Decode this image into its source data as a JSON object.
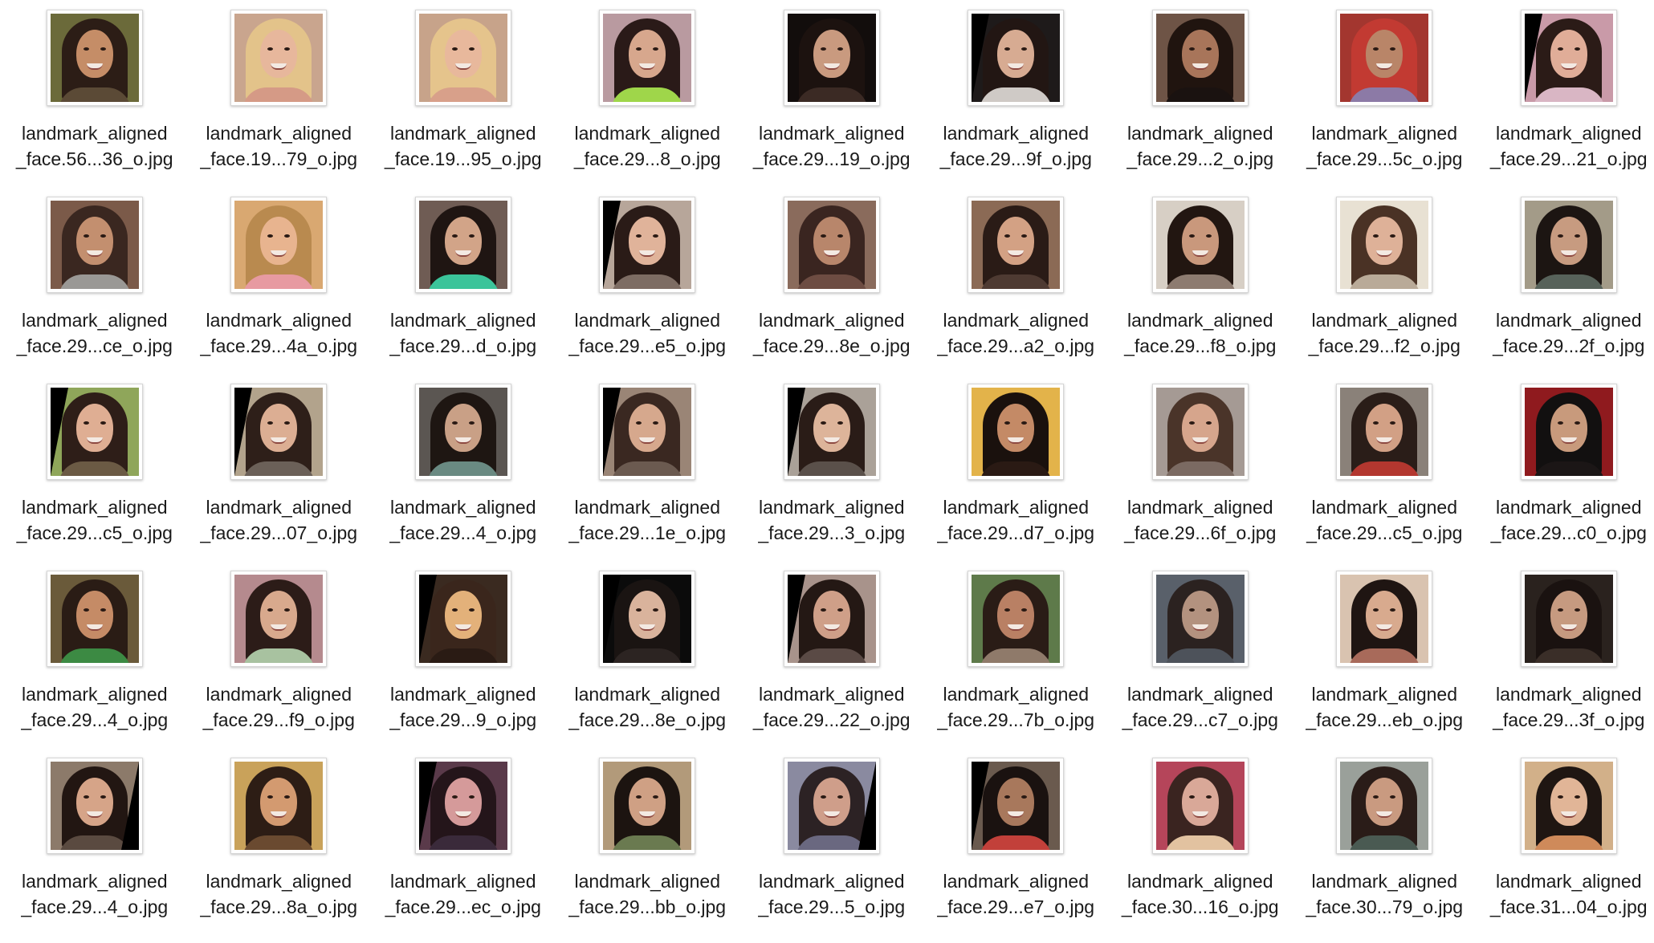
{
  "files": [
    {
      "line1": "landmark_aligned",
      "line2": "_face.56...36_o.jpg",
      "colors": {
        "bg": "#6b6a3a",
        "hair": "#2c1d16",
        "skin": "#c58d67",
        "shirt": "#5b4a36"
      },
      "mask": "none"
    },
    {
      "line1": "landmark_aligned",
      "line2": "_face.19...79_o.jpg",
      "colors": {
        "bg": "#c9a58e",
        "hair": "#e3c38a",
        "skin": "#e7b79c",
        "shirt": "#d59a86"
      },
      "mask": "none"
    },
    {
      "line1": "landmark_aligned",
      "line2": "_face.19...95_o.jpg",
      "colors": {
        "bg": "#c7a38a",
        "hair": "#e5c48c",
        "skin": "#e8b89c",
        "shirt": "#d8a08a"
      },
      "mask": "none"
    },
    {
      "line1": "landmark_aligned",
      "line2": "_face.29...8_o.jpg",
      "colors": {
        "bg": "#b99aa0",
        "hair": "#2a1a18",
        "skin": "#d7a78d",
        "shirt": "#9fd64a"
      },
      "mask": "none"
    },
    {
      "line1": "landmark_aligned",
      "line2": "_face.29...19_o.jpg",
      "colors": {
        "bg": "#120d0c",
        "hair": "#1c120f",
        "skin": "#c99a7f",
        "shirt": "#3b2a24"
      },
      "mask": "none"
    },
    {
      "line1": "landmark_aligned",
      "line2": "_face.29...9f_o.jpg",
      "colors": {
        "bg": "#1e1a1a",
        "hair": "#221613",
        "skin": "#d7ab92",
        "shirt": "#cfcac6"
      },
      "mask": "left"
    },
    {
      "line1": "landmark_aligned",
      "line2": "_face.29...2_o.jpg",
      "colors": {
        "bg": "#6e5446",
        "hair": "#20140f",
        "skin": "#a8755a",
        "shirt": "#1a1210"
      },
      "mask": "none"
    },
    {
      "line1": "landmark_aligned",
      "line2": "_face.29...5c_o.jpg",
      "colors": {
        "bg": "#a3362f",
        "hair": "#c23a32",
        "skin": "#b98568",
        "shirt": "#8c7aa6"
      },
      "mask": "none"
    },
    {
      "line1": "landmark_aligned",
      "line2": "_face.29...21_o.jpg",
      "colors": {
        "bg": "#c99aa8",
        "hair": "#2b1b17",
        "skin": "#e0ad98",
        "shirt": "#d9b6c4"
      },
      "mask": "left"
    },
    {
      "line1": "landmark_aligned",
      "line2": "_face.29...ce_o.jpg",
      "colors": {
        "bg": "#7b5a49",
        "hair": "#3a2720",
        "skin": "#c38f6f",
        "shirt": "#9a9895"
      },
      "mask": "none"
    },
    {
      "line1": "landmark_aligned",
      "line2": "_face.29...4a_o.jpg",
      "colors": {
        "bg": "#d9a871",
        "hair": "#b98a4f",
        "skin": "#e8b48f",
        "shirt": "#e79aa1"
      },
      "mask": "none"
    },
    {
      "line1": "landmark_aligned",
      "line2": "_face.29...d_o.jpg",
      "colors": {
        "bg": "#6f5c54",
        "hair": "#1f1512",
        "skin": "#d2a488",
        "shirt": "#3bc49a"
      },
      "mask": "none"
    },
    {
      "line1": "landmark_aligned",
      "line2": "_face.29...e5_o.jpg",
      "colors": {
        "bg": "#b7a69a",
        "hair": "#2a1b17",
        "skin": "#e0b39a",
        "shirt": "#7d6c63"
      },
      "mask": "left"
    },
    {
      "line1": "landmark_aligned",
      "line2": "_face.29...8e_o.jpg",
      "colors": {
        "bg": "#8a6b5c",
        "hair": "#3a2520",
        "skin": "#b8866b",
        "shirt": "#6d4c42"
      },
      "mask": "none"
    },
    {
      "line1": "landmark_aligned",
      "line2": "_face.29...a2_o.jpg",
      "colors": {
        "bg": "#8b6a55",
        "hair": "#2a1b16",
        "skin": "#d3a184",
        "shirt": "#4e3a32"
      },
      "mask": "none"
    },
    {
      "line1": "landmark_aligned",
      "line2": "_face.29...f8_o.jpg",
      "colors": {
        "bg": "#d7cfc5",
        "hair": "#221611",
        "skin": "#c9987c",
        "shirt": "#8d7b70"
      },
      "mask": "none"
    },
    {
      "line1": "landmark_aligned",
      "line2": "_face.29...f2_o.jpg",
      "colors": {
        "bg": "#e8e1d3",
        "hair": "#4a3225",
        "skin": "#deb198",
        "shirt": "#b9aa98"
      },
      "mask": "none"
    },
    {
      "line1": "landmark_aligned",
      "line2": "_face.29...2f_o.jpg",
      "colors": {
        "bg": "#a39b88",
        "hair": "#1c1512",
        "skin": "#c79b80",
        "shirt": "#57625a"
      },
      "mask": "none"
    },
    {
      "line1": "landmark_aligned",
      "line2": "_face.29...c5_o.jpg",
      "colors": {
        "bg": "#8fa65a",
        "hair": "#2e1e18",
        "skin": "#dfae93",
        "shirt": "#6b5a44"
      },
      "mask": "left"
    },
    {
      "line1": "landmark_aligned",
      "line2": "_face.29...07_o.jpg",
      "colors": {
        "bg": "#b2a38c",
        "hair": "#2e1f19",
        "skin": "#dcae93",
        "shirt": "#6b6058"
      },
      "mask": "left"
    },
    {
      "line1": "landmark_aligned",
      "line2": "_face.29...4_o.jpg",
      "colors": {
        "bg": "#5b5652",
        "hair": "#1e1612",
        "skin": "#c9a086",
        "shirt": "#6a8a82"
      },
      "mask": "none"
    },
    {
      "line1": "landmark_aligned",
      "line2": "_face.29...1e_o.jpg",
      "colors": {
        "bg": "#9a8576",
        "hair": "#3a2821",
        "skin": "#d6a88d",
        "shirt": "#6b5a50"
      },
      "mask": "left"
    },
    {
      "line1": "landmark_aligned",
      "line2": "_face.29...3_o.jpg",
      "colors": {
        "bg": "#aaa198",
        "hair": "#2a1c17",
        "skin": "#ddb49a",
        "shirt": "#5a504a"
      },
      "mask": "left"
    },
    {
      "line1": "landmark_aligned",
      "line2": "_face.29...d7_o.jpg",
      "colors": {
        "bg": "#e3b34a",
        "hair": "#1a110d",
        "skin": "#c48a66",
        "shirt": "#2a1a14"
      },
      "mask": "none"
    },
    {
      "line1": "landmark_aligned",
      "line2": "_face.29...6f_o.jpg",
      "colors": {
        "bg": "#a59a94",
        "hair": "#4a3429",
        "skin": "#d6a58c",
        "shirt": "#7b6a62"
      },
      "mask": "none"
    },
    {
      "line1": "landmark_aligned",
      "line2": "_face.29...c5_o.jpg",
      "colors": {
        "bg": "#8a8179",
        "hair": "#2a1d18",
        "skin": "#d2a085",
        "shirt": "#b3372f"
      },
      "mask": "none"
    },
    {
      "line1": "landmark_aligned",
      "line2": "_face.29...c0_o.jpg",
      "colors": {
        "bg": "#8f1a1e",
        "hair": "#121010",
        "skin": "#c89a7c",
        "shirt": "#1b1616"
      },
      "mask": "none"
    },
    {
      "line1": "landmark_aligned",
      "line2": "_face.29...4_o.jpg",
      "colors": {
        "bg": "#6a5a3a",
        "hair": "#2a1c15",
        "skin": "#c58b66",
        "shirt": "#3c8a43"
      },
      "mask": "none"
    },
    {
      "line1": "landmark_aligned",
      "line2": "_face.29...f9_o.jpg",
      "colors": {
        "bg": "#b58a8e",
        "hair": "#2c1c18",
        "skin": "#d8a98d",
        "shirt": "#a8c2a0"
      },
      "mask": "none"
    },
    {
      "line1": "landmark_aligned",
      "line2": "_face.29...9_o.jpg",
      "colors": {
        "bg": "#3a2a20",
        "hair": "#3a261c",
        "skin": "#e3b17a",
        "shirt": "#2a1b14"
      },
      "mask": "left"
    },
    {
      "line1": "landmark_aligned",
      "line2": "_face.29...8e_o.jpg",
      "colors": {
        "bg": "#0b0b0b",
        "hair": "#1a1412",
        "skin": "#d9b39c",
        "shirt": "#2c2422"
      },
      "mask": "left"
    },
    {
      "line1": "landmark_aligned",
      "line2": "_face.29...22_o.jpg",
      "colors": {
        "bg": "#a8938b",
        "hair": "#241814",
        "skin": "#cf9f88",
        "shirt": "#5a4a45"
      },
      "mask": "left"
    },
    {
      "line1": "landmark_aligned",
      "line2": "_face.29...7b_o.jpg",
      "colors": {
        "bg": "#5e7a4a",
        "hair": "#2a1c16",
        "skin": "#b98064",
        "shirt": "#8f7a6a"
      },
      "mask": "none"
    },
    {
      "line1": "landmark_aligned",
      "line2": "_face.29...c7_o.jpg",
      "colors": {
        "bg": "#59606a",
        "hair": "#2b2220",
        "skin": "#b3927f",
        "shirt": "#4d525a"
      },
      "mask": "none"
    },
    {
      "line1": "landmark_aligned",
      "line2": "_face.29...eb_o.jpg",
      "colors": {
        "bg": "#d9c3b0",
        "hair": "#1f1512",
        "skin": "#d8aa8e",
        "shirt": "#a86a5a"
      },
      "mask": "none"
    },
    {
      "line1": "landmark_aligned",
      "line2": "_face.29...3f_o.jpg",
      "colors": {
        "bg": "#2a221e",
        "hair": "#1a1210",
        "skin": "#c69a80",
        "shirt": "#3a2e28"
      },
      "mask": "none"
    },
    {
      "line1": "landmark_aligned",
      "line2": "_face.29...4_o.jpg",
      "colors": {
        "bg": "#8c7a6a",
        "hair": "#221612",
        "skin": "#d6a488",
        "shirt": "#5a4a40"
      },
      "mask": "right"
    },
    {
      "line1": "landmark_aligned",
      "line2": "_face.29...8a_o.jpg",
      "colors": {
        "bg": "#c9a25a",
        "hair": "#2d1d15",
        "skin": "#d39a70",
        "shirt": "#6a4a30"
      },
      "mask": "none"
    },
    {
      "line1": "landmark_aligned",
      "line2": "_face.29...ec_o.jpg",
      "colors": {
        "bg": "#5a3a4a",
        "hair": "#24151a",
        "skin": "#d59a9a",
        "shirt": "#3a2a3a"
      },
      "mask": "left"
    },
    {
      "line1": "landmark_aligned",
      "line2": "_face.29...bb_o.jpg",
      "colors": {
        "bg": "#b29a7a",
        "hair": "#1c1410",
        "skin": "#cfa084",
        "shirt": "#6a7a50"
      },
      "mask": "none"
    },
    {
      "line1": "landmark_aligned",
      "line2": "_face.29...5_o.jpg",
      "colors": {
        "bg": "#8a8aa0",
        "hair": "#2c2224",
        "skin": "#cf9e8a",
        "shirt": "#6a6880"
      },
      "mask": "right"
    },
    {
      "line1": "landmark_aligned",
      "line2": "_face.29...e7_o.jpg",
      "colors": {
        "bg": "#6a5a4e",
        "hair": "#1a1210",
        "skin": "#a8785c",
        "shirt": "#c2403a"
      },
      "mask": "left"
    },
    {
      "line1": "landmark_aligned",
      "line2": "_face.30...16_o.jpg",
      "colors": {
        "bg": "#b5455a",
        "hair": "#3a2420",
        "skin": "#d9a898",
        "shirt": "#e2c2a0"
      },
      "mask": "none"
    },
    {
      "line1": "landmark_aligned",
      "line2": "_face.30...79_o.jpg",
      "colors": {
        "bg": "#9aa09a",
        "hair": "#2a1c18",
        "skin": "#c99a80",
        "shirt": "#4a5a52"
      },
      "mask": "none"
    },
    {
      "line1": "landmark_aligned",
      "line2": "_face.31...04_o.jpg",
      "colors": {
        "bg": "#d2b089",
        "hair": "#1f1612",
        "skin": "#e1b597",
        "shirt": "#cf8a5a"
      },
      "mask": "none"
    }
  ]
}
